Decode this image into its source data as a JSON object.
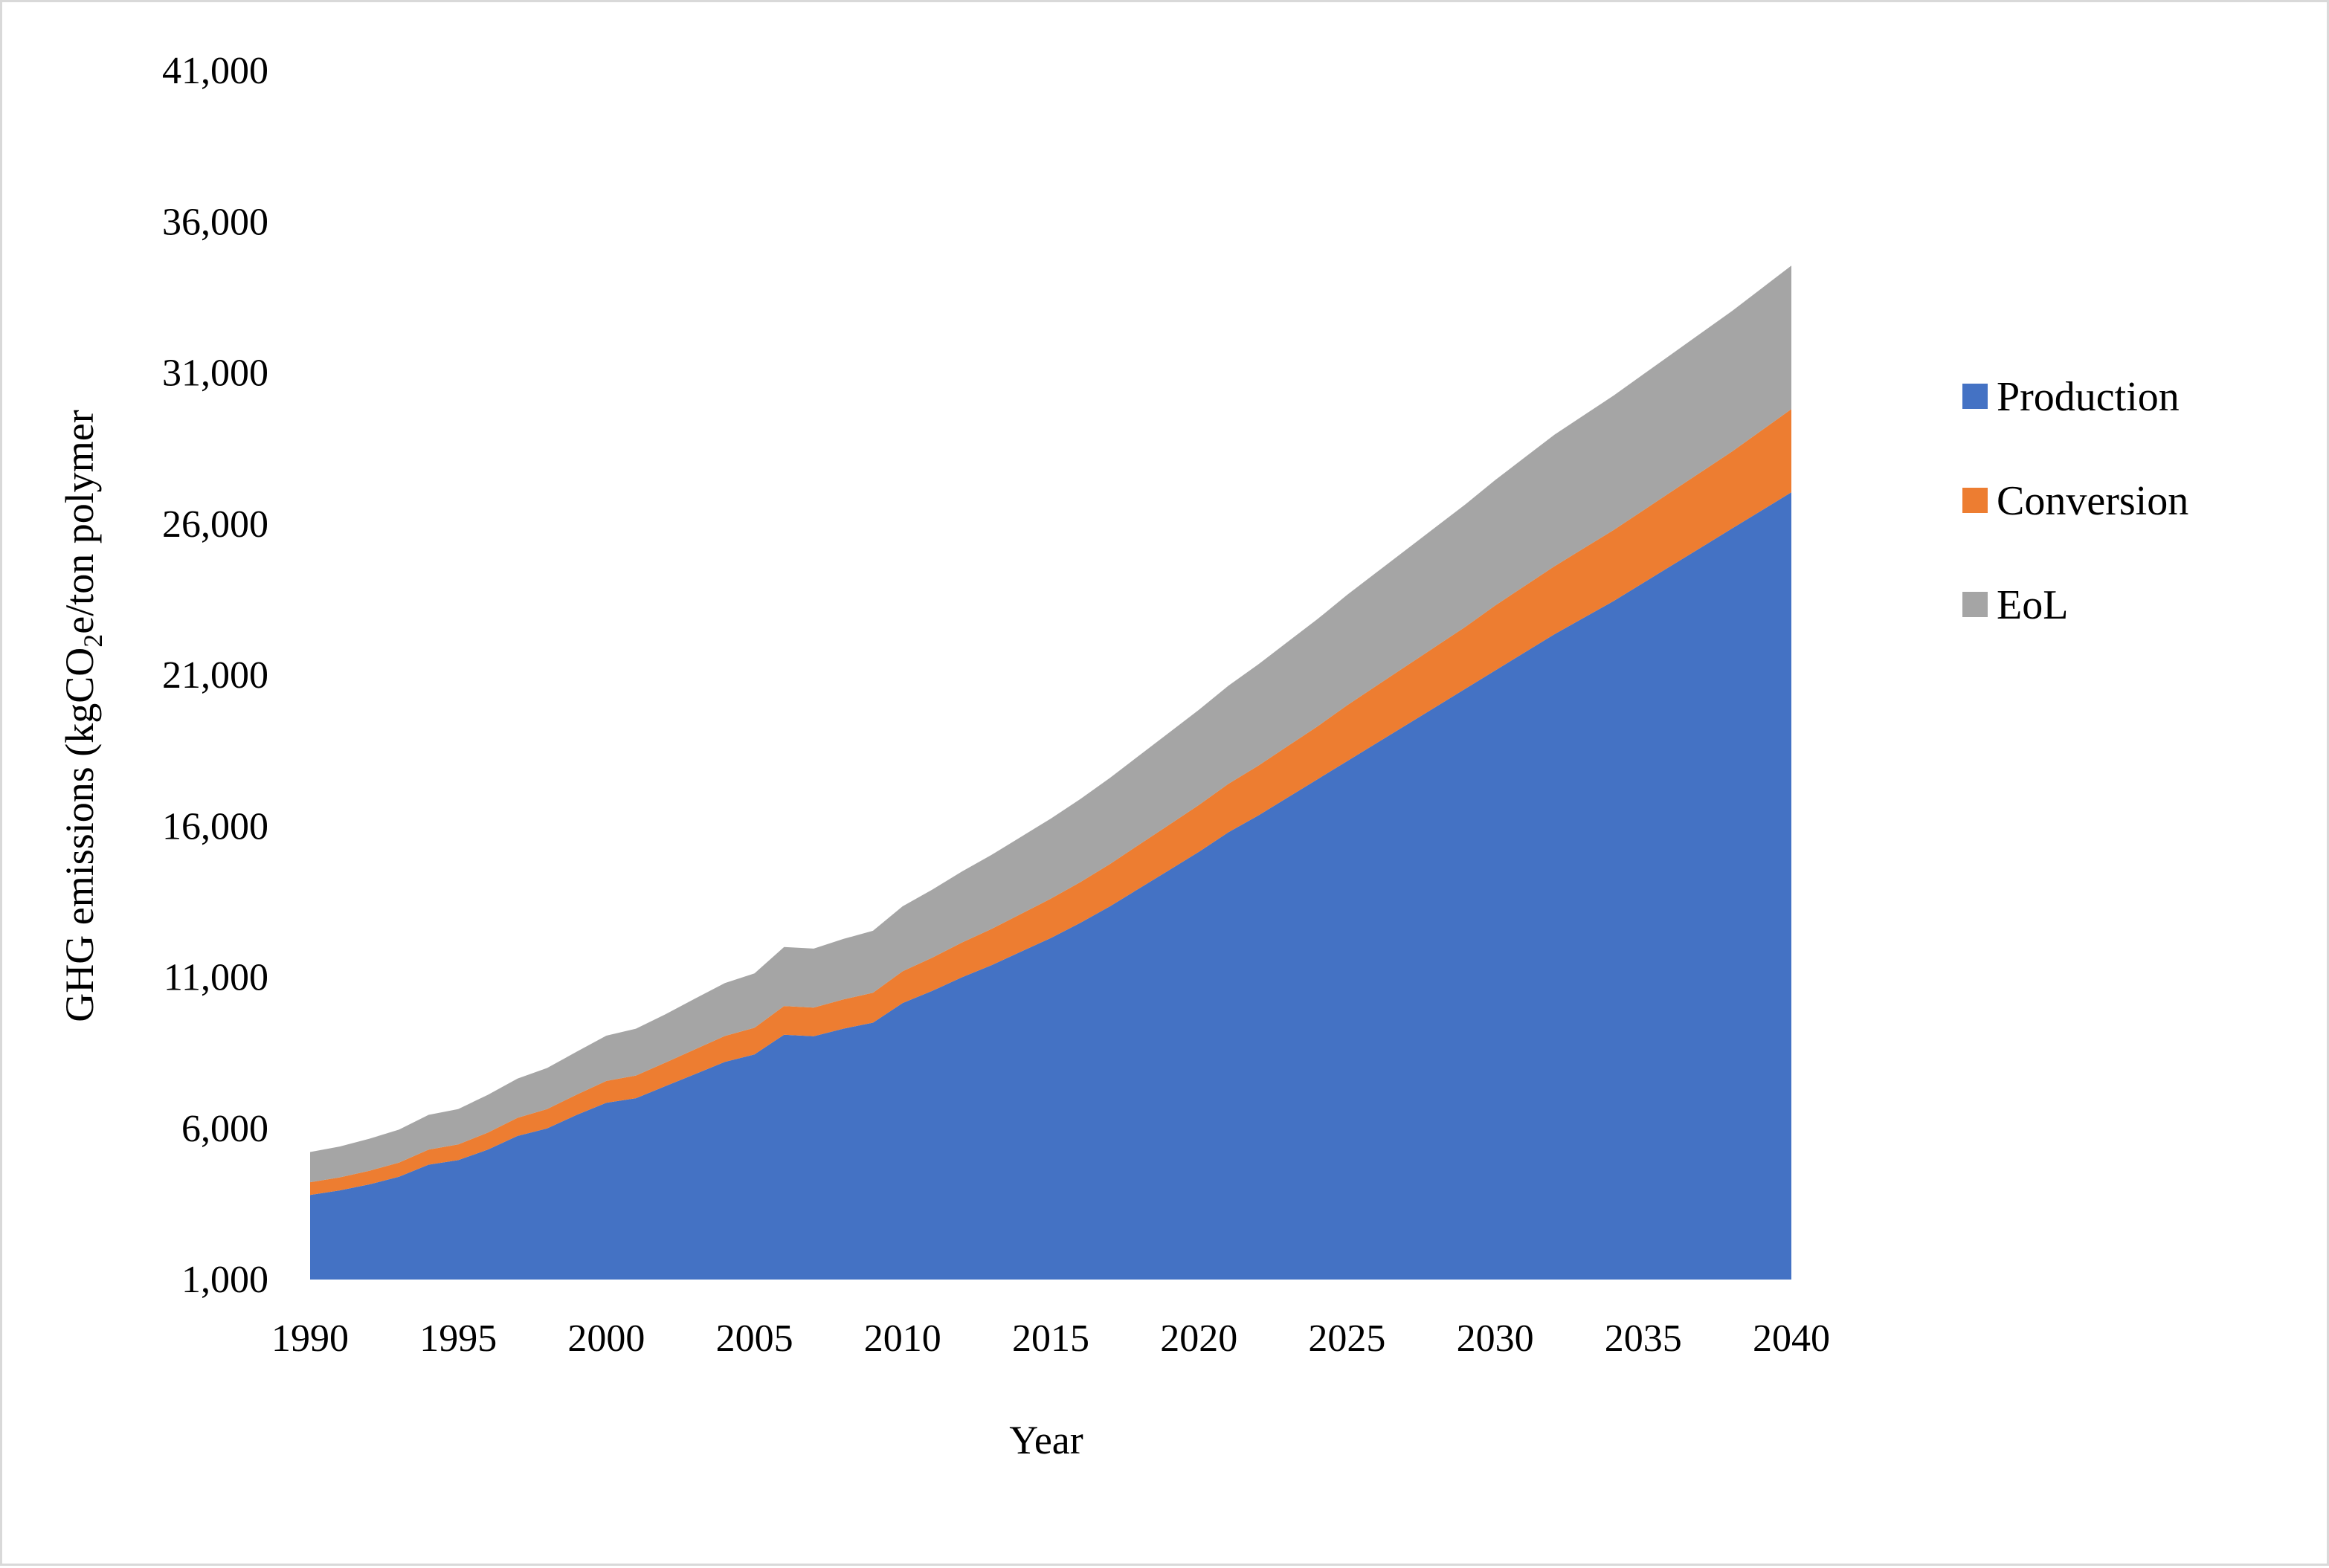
{
  "chart_data": {
    "type": "area",
    "stacked": true,
    "xlabel": "Year",
    "ylabel": "GHG emissions (kgCO",
    "ylabel_sub": "2",
    "ylabel_suffix": "e/ton polymer",
    "xlim": [
      1990,
      2040
    ],
    "ylim": [
      1000,
      41000
    ],
    "x_ticks": [
      1990,
      1995,
      2000,
      2005,
      2010,
      2015,
      2020,
      2025,
      2030,
      2035,
      2040
    ],
    "x_tick_labels": [
      "1990",
      "1995",
      "2000",
      "2005",
      "2010",
      "2015",
      "2020",
      "2025",
      "2030",
      "2035",
      "2040"
    ],
    "y_ticks": [
      1000,
      6000,
      11000,
      16000,
      21000,
      26000,
      31000,
      36000,
      41000
    ],
    "y_tick_labels": [
      "1,000",
      "6,000",
      "11,000",
      "16,000",
      "21,000",
      "26,000",
      "31,000",
      "36,000",
      "41,000"
    ],
    "grid": false,
    "legend_position": "right",
    "x": [
      1990,
      1991,
      1992,
      1993,
      1994,
      1995,
      1996,
      1997,
      1998,
      1999,
      2000,
      2001,
      2002,
      2003,
      2004,
      2005,
      2006,
      2007,
      2008,
      2009,
      2010,
      2011,
      2012,
      2013,
      2014,
      2015,
      2016,
      2017,
      2018,
      2019,
      2020,
      2021,
      2022,
      2023,
      2024,
      2025,
      2026,
      2027,
      2028,
      2029,
      2030,
      2031,
      2032,
      2033,
      2034,
      2035,
      2036,
      2037,
      2038,
      2039,
      2040
    ],
    "series": [
      {
        "name": "Production",
        "color": "#4472c4",
        "values": [
          3800,
          3950,
          4150,
          4400,
          4800,
          4950,
          5300,
          5750,
          6000,
          6450,
          6850,
          7000,
          7400,
          7800,
          8200,
          8450,
          9100,
          9050,
          9300,
          9500,
          10150,
          10550,
          11000,
          11400,
          11850,
          12300,
          12800,
          13350,
          13950,
          14550,
          15150,
          15800,
          16350,
          16950,
          17550,
          18150,
          18750,
          19350,
          19950,
          20550,
          21150,
          21750,
          22350,
          22900,
          23450,
          24050,
          24650,
          25250,
          25850,
          26450,
          27050
        ]
      },
      {
        "name": "Conversion",
        "color": "#ed7d31",
        "values": [
          420,
          430,
          450,
          470,
          500,
          520,
          560,
          600,
          640,
          670,
          720,
          750,
          780,
          820,
          860,
          880,
          950,
          950,
          970,
          990,
          1050,
          1100,
          1150,
          1200,
          1250,
          1300,
          1350,
          1400,
          1450,
          1500,
          1550,
          1600,
          1650,
          1700,
          1750,
          1850,
          1900,
          1950,
          2000,
          2050,
          2150,
          2200,
          2250,
          2300,
          2350,
          2400,
          2450,
          2500,
          2550,
          2650,
          2750
        ]
      },
      {
        "name": "EoL",
        "color": "#a5a5a5",
        "values": [
          1000,
          1020,
          1060,
          1090,
          1150,
          1170,
          1250,
          1300,
          1360,
          1420,
          1500,
          1550,
          1600,
          1680,
          1750,
          1800,
          1950,
          1950,
          2000,
          2050,
          2150,
          2250,
          2350,
          2450,
          2550,
          2650,
          2750,
          2850,
          2950,
          3050,
          3150,
          3250,
          3350,
          3450,
          3550,
          3650,
          3750,
          3850,
          3950,
          4050,
          4150,
          4250,
          4350,
          4400,
          4450,
          4500,
          4550,
          4600,
          4650,
          4700,
          4750
        ]
      }
    ]
  }
}
